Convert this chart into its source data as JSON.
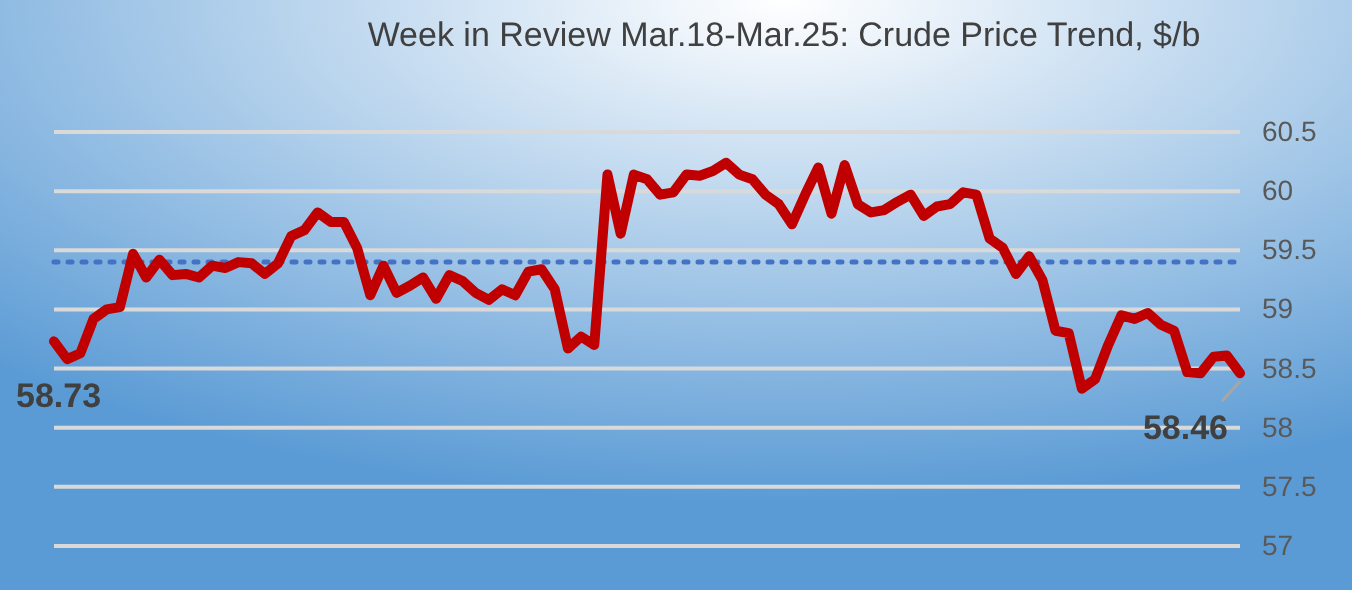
{
  "chart_data": {
    "type": "line",
    "title": "Week in Review Mar.18-Mar.25: Crude Price Trend, $/b",
    "categories": [
      null,
      null,
      null,
      null,
      null,
      null,
      null,
      null,
      null,
      null,
      null,
      null,
      null,
      null,
      null,
      null,
      null,
      null,
      null,
      null,
      null,
      null,
      null,
      null,
      null,
      null,
      null,
      null,
      null,
      null,
      null,
      null,
      null,
      null,
      null,
      null,
      null,
      null,
      null,
      null,
      null,
      null,
      null,
      null,
      null,
      null,
      null,
      null,
      null,
      null,
      null,
      null,
      null,
      null,
      null,
      null,
      null,
      null,
      null,
      null,
      null,
      null,
      null,
      null,
      null,
      null,
      null,
      null,
      null,
      null,
      null,
      null,
      null,
      null,
      null,
      null,
      null,
      null,
      null,
      null,
      null,
      null,
      null,
      null,
      null,
      null,
      null,
      null,
      null,
      null,
      null
    ],
    "series": [
      {
        "color": "#c00000",
        "values": [
          58.73,
          58.58,
          58.63,
          58.92,
          59.0,
          59.02,
          59.47,
          59.27,
          59.42,
          59.29,
          59.3,
          59.27,
          59.37,
          59.35,
          59.4,
          59.39,
          59.3,
          59.39,
          59.62,
          59.67,
          59.82,
          59.74,
          59.74,
          59.52,
          59.12,
          59.37,
          59.14,
          59.2,
          59.27,
          59.09,
          59.29,
          59.24,
          59.14,
          59.08,
          59.17,
          59.12,
          59.32,
          59.34,
          59.17,
          58.67,
          58.77,
          58.7,
          60.14,
          59.64,
          60.14,
          60.1,
          59.97,
          59.99,
          60.14,
          60.13,
          60.17,
          60.24,
          60.14,
          60.1,
          59.97,
          59.89,
          59.72,
          59.97,
          60.2,
          59.81,
          60.22,
          59.89,
          59.82,
          59.84,
          59.91,
          59.97,
          59.79,
          59.87,
          59.89,
          59.99,
          59.97,
          59.6,
          59.52,
          59.3,
          59.45,
          59.25,
          58.82,
          58.8,
          58.33,
          58.41,
          58.7,
          58.95,
          58.92,
          58.97,
          58.87,
          58.82,
          58.47,
          58.46,
          58.6,
          58.61,
          58.46
        ],
        "value_labels": [
          "58.73",
          null,
          null,
          null,
          null,
          null,
          null,
          null,
          null,
          null,
          null,
          null,
          null,
          null,
          null,
          null,
          null,
          null,
          null,
          null,
          null,
          null,
          null,
          null,
          null,
          null,
          null,
          null,
          null,
          null,
          null,
          null,
          null,
          null,
          null,
          null,
          null,
          null,
          null,
          null,
          null,
          null,
          null,
          null,
          null,
          null,
          null,
          null,
          null,
          null,
          null,
          null,
          null,
          null,
          null,
          null,
          null,
          null,
          null,
          null,
          null,
          null,
          null,
          null,
          null,
          null,
          null,
          null,
          null,
          null,
          null,
          null,
          null,
          null,
          null,
          null,
          null,
          null,
          null,
          null,
          null,
          null,
          null,
          null,
          null,
          null,
          null,
          null,
          null,
          null,
          "58.46"
        ]
      }
    ],
    "ylim": [
      57,
      60.5
    ],
    "yticks": [
      57,
      57.5,
      58,
      58.5,
      59,
      59.5,
      60,
      60.5
    ],
    "ref_lines": [
      {
        "axis": "y",
        "value": 59.4,
        "color": "#4472c4",
        "line_style": "dotted"
      }
    ],
    "grid": "y",
    "tick_labels": "y",
    "marker": "none",
    "line_style": "solid"
  }
}
